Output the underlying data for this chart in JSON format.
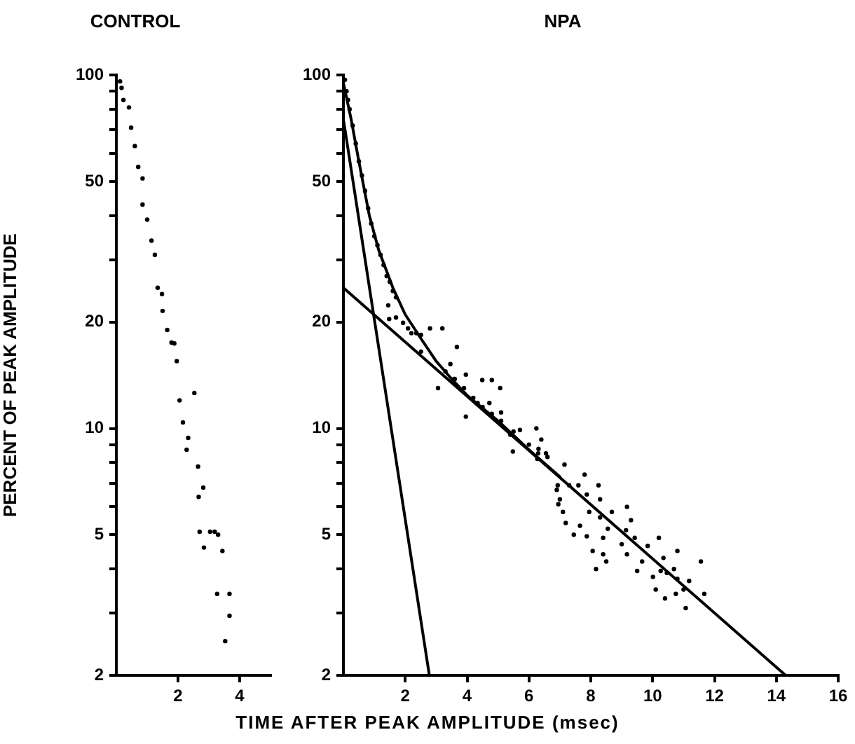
{
  "chart_data": [
    {
      "type": "scatter",
      "title": "CONTROL",
      "ylabel": "PERCENT OF PEAK AMPLITUDE",
      "log": "y",
      "grid": false,
      "legend": false,
      "marker": "circle",
      "xlim": [
        0,
        5
      ],
      "xticks": [
        2,
        4
      ],
      "ylim": [
        2,
        100
      ],
      "yticks": [
        2,
        {
          "value": 3,
          "label": null
        },
        {
          "value": 4,
          "label": null
        },
        5,
        {
          "value": 6,
          "label": null
        },
        {
          "value": 7,
          "label": null
        },
        {
          "value": 8,
          "label": null
        },
        {
          "value": 9,
          "label": null
        },
        10,
        20,
        {
          "value": 30,
          "label": null
        },
        {
          "value": 40,
          "label": null
        },
        50,
        {
          "value": 60,
          "label": null
        },
        {
          "value": 70,
          "label": null
        },
        {
          "value": 80,
          "label": null
        },
        {
          "value": 90,
          "label": null
        },
        100
      ],
      "series": [
        {
          "type": "scatter",
          "color": "#000000",
          "x": [
            0.12,
            0.17,
            0.23,
            0.41,
            0.48,
            0.6,
            0.71,
            0.85,
            0.85,
            1.0,
            1.14,
            1.25,
            1.34,
            1.48,
            1.5,
            1.65,
            1.79,
            1.88,
            1.96,
            2.05,
            2.16,
            2.28,
            2.33,
            2.53,
            2.65,
            2.67,
            2.7,
            2.82,
            2.84,
            3.04,
            3.19,
            3.3,
            3.44,
            3.27,
            3.67,
            3.67,
            3.53
          ],
          "values": [
            96,
            92,
            85,
            81,
            71,
            63,
            55,
            51,
            43,
            39,
            34,
            31,
            25,
            24,
            21.5,
            19,
            17.5,
            17.4,
            15.5,
            12,
            10.4,
            8.7,
            9.4,
            12.6,
            7.8,
            6.4,
            5.1,
            6.8,
            4.6,
            5.1,
            5.1,
            5.0,
            4.5,
            3.4,
            3.4,
            2.95,
            2.5
          ]
        }
      ]
    },
    {
      "type": "scatter",
      "title": "NPA",
      "xlabel": "TIME AFTER PEAK AMPLITUDE (msec)",
      "log": "y",
      "grid": false,
      "legend": false,
      "marker": "circle",
      "xlim": [
        0,
        16
      ],
      "xticks": [
        2,
        4,
        6,
        8,
        10,
        12,
        14,
        16
      ],
      "ylim": [
        2,
        100
      ],
      "yticks": [
        2,
        {
          "value": 3,
          "label": null
        },
        {
          "value": 4,
          "label": null
        },
        5,
        {
          "value": 6,
          "label": null
        },
        {
          "value": 7,
          "label": null
        },
        {
          "value": 8,
          "label": null
        },
        {
          "value": 9,
          "label": null
        },
        10,
        20,
        {
          "value": 30,
          "label": null
        },
        {
          "value": 40,
          "label": null
        },
        50,
        {
          "value": 60,
          "label": null
        },
        {
          "value": 70,
          "label": null
        },
        {
          "value": 80,
          "label": null
        },
        {
          "value": 90,
          "label": null
        },
        100
      ],
      "series": [
        {
          "type": "scatter",
          "color": "#000000",
          "x": [
            0.05,
            0.1,
            0.15,
            0.2,
            0.3,
            0.4,
            0.5,
            0.6,
            0.7,
            0.8,
            0.9,
            1.0,
            1.1,
            1.2,
            1.3,
            1.4,
            1.5,
            1.6,
            1.7,
            1.45,
            1.48,
            1.7,
            1.93,
            2.09,
            2.2,
            2.36,
            2.51,
            2.51,
            2.8,
            3.2,
            3.67,
            3.06,
            3.46,
            3.58,
            3.96,
            4.49,
            4.8,
            5.07,
            4.34,
            3.96,
            4.72,
            5.1,
            5.4,
            5.48,
            5.71,
            6.24,
            6.4,
            6.55,
            6.93,
            7.0,
            3.3,
            3.6,
            3.9,
            4.2,
            4.5,
            4.8,
            5.1,
            5.5,
            6.0,
            6.3,
            6.31,
            6.27,
            6.6,
            7.15,
            6.9,
            6.95,
            7.1,
            7.19,
            7.3,
            7.6,
            7.8,
            7.65,
            7.45,
            7.87,
            7.87,
            7.95,
            8.25,
            8.3,
            8.3,
            8.4,
            8.06,
            8.4,
            8.5,
            8.17,
            8.68,
            8.55,
            9.17,
            9.3,
            9.14,
            9.0,
            9.42,
            9.17,
            9.66,
            9.5,
            9.84,
            10.2,
            10.35,
            10.26,
            10.46,
            10.01,
            10.1,
            10.69,
            10.8,
            10.8,
            10.75,
            10.4,
            11.0,
            11.18,
            11.07,
            11.56,
            11.67
          ],
          "values": [
            97,
            90,
            85,
            80,
            72,
            64,
            57,
            52,
            47,
            42,
            38,
            35,
            33,
            31,
            29,
            27,
            26,
            24.5,
            23.5,
            22.3,
            20.4,
            20.6,
            19.9,
            19.2,
            18.6,
            18.6,
            18.4,
            16.5,
            19.2,
            19.2,
            17.0,
            13.0,
            15.2,
            13.8,
            14.2,
            13.7,
            13.7,
            13.0,
            11.8,
            10.8,
            11.8,
            11.1,
            9.6,
            8.6,
            9.9,
            10.0,
            9.3,
            8.5,
            6.9,
            6.3,
            14.5,
            13.8,
            13.0,
            12.2,
            11.5,
            11.0,
            10.5,
            9.8,
            9.0,
            8.5,
            8.75,
            8.2,
            8.3,
            7.9,
            6.7,
            6.1,
            5.8,
            5.4,
            6.9,
            6.9,
            7.4,
            5.3,
            5.0,
            4.95,
            6.5,
            5.8,
            6.9,
            6.3,
            5.6,
            4.9,
            4.5,
            4.4,
            4.2,
            4.0,
            5.8,
            5.2,
            6.0,
            5.5,
            5.15,
            4.7,
            4.9,
            4.4,
            4.2,
            3.95,
            4.65,
            4.9,
            4.3,
            3.95,
            3.9,
            3.8,
            3.5,
            4.0,
            4.5,
            3.75,
            3.4,
            3.3,
            3.5,
            3.7,
            3.1,
            4.2,
            3.4
          ]
        },
        {
          "type": "line",
          "color": "#000000",
          "marker": "none",
          "line_style": "solid",
          "x": [
            0,
            0.25,
            0.5,
            0.84,
            1.14,
            1.6,
            2,
            2.5,
            3,
            3.5,
            4,
            5,
            6,
            7
          ],
          "values": [
            95,
            75,
            57,
            40,
            32,
            25,
            21,
            18,
            15.5,
            13.8,
            12.4,
            10.5,
            8.7,
            7.3
          ]
        },
        {
          "type": "line",
          "color": "#000000",
          "marker": "none",
          "line_style": "solid",
          "x": [
            0,
            2.78
          ],
          "values": [
            75,
            2
          ]
        },
        {
          "type": "line",
          "color": "#000000",
          "marker": "none",
          "line_style": "solid",
          "x": [
            0,
            14.3
          ],
          "values": [
            25,
            2
          ]
        }
      ]
    }
  ]
}
